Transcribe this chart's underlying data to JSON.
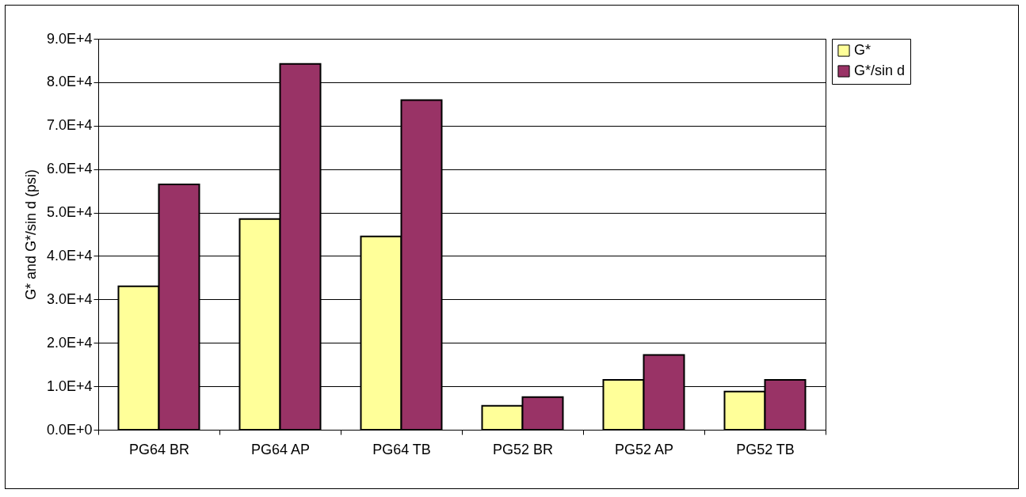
{
  "chart_data": {
    "type": "bar",
    "ylabel": "G* and G*/sin d (psi)",
    "categories": [
      "PG64 BR",
      "PG64 AP",
      "PG64 TB",
      "PG52 BR",
      "PG52 AP",
      "PG52 TB"
    ],
    "series": [
      {
        "name": "G*",
        "color": "#ffff99",
        "values": [
          33000,
          48500,
          44500,
          5500,
          11500,
          8800
        ]
      },
      {
        "name": "G*/sin d",
        "color": "#993366",
        "values": [
          56500,
          84200,
          75900,
          7500,
          17200,
          11500
        ]
      }
    ],
    "ylim": [
      0,
      90000
    ],
    "yticks": [
      {
        "value": 0,
        "label": "0.0E+0"
      },
      {
        "value": 10000,
        "label": "1.0E+4"
      },
      {
        "value": 20000,
        "label": "2.0E+4"
      },
      {
        "value": 30000,
        "label": "3.0E+4"
      },
      {
        "value": 40000,
        "label": "4.0E+4"
      },
      {
        "value": 50000,
        "label": "5.0E+4"
      },
      {
        "value": 60000,
        "label": "6.0E+4"
      },
      {
        "value": 70000,
        "label": "7.0E+4"
      },
      {
        "value": 80000,
        "label": "8.0E+4"
      },
      {
        "value": 90000,
        "label": "9.0E+4"
      }
    ],
    "grid": "y",
    "legend": "right"
  }
}
